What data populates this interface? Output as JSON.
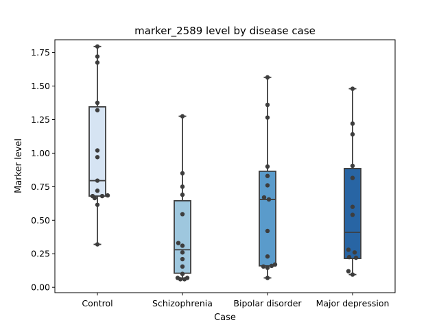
{
  "chart_data": {
    "type": "box",
    "title": "marker_2589 level by disease case",
    "xlabel": "Case",
    "ylabel": "Marker level",
    "ylim": [
      -0.04,
      1.845
    ],
    "yticks": [
      "0.00",
      "0.25",
      "0.50",
      "0.75",
      "1.00",
      "1.25",
      "1.50",
      "1.75"
    ],
    "ytick_values": [
      0,
      0.25,
      0.5,
      0.75,
      1.0,
      1.25,
      1.5,
      1.75
    ],
    "grid": false,
    "categories": [
      "Control",
      "Schizophrenia",
      "Bipolar disorder",
      "Major depression"
    ],
    "box_colors": [
      "#d6e4f3",
      "#9ec7de",
      "#5a9bcb",
      "#2865a4"
    ],
    "edge_color": "#3d3d3d",
    "point_color": "#3d3d3d",
    "boxes": [
      {
        "whisker_low": 0.32,
        "q1": 0.68,
        "median": 0.795,
        "q3": 1.345,
        "whisker_high": 1.795
      },
      {
        "whisker_low": 0.06,
        "q1": 0.105,
        "median": 0.28,
        "q3": 0.645,
        "whisker_high": 1.275
      },
      {
        "whisker_low": 0.07,
        "q1": 0.16,
        "median": 0.655,
        "q3": 0.865,
        "whisker_high": 1.565
      },
      {
        "whisker_low": 0.095,
        "q1": 0.215,
        "median": 0.41,
        "q3": 0.885,
        "whisker_high": 1.48
      }
    ],
    "points": [
      [
        {
          "dx": 0.0,
          "y": 1.795
        },
        {
          "dx": 0.0,
          "y": 1.72
        },
        {
          "dx": 0.0,
          "y": 1.675
        },
        {
          "dx": 0.0,
          "y": 1.375
        },
        {
          "dx": 0.0,
          "y": 1.32
        },
        {
          "dx": 0.0,
          "y": 1.02
        },
        {
          "dx": 0.0,
          "y": 0.97
        },
        {
          "dx": 0.0,
          "y": 0.795
        },
        {
          "dx": 0.0,
          "y": 0.72
        },
        {
          "dx": -0.07,
          "y": 0.68
        },
        {
          "dx": 0.07,
          "y": 0.68
        },
        {
          "dx": -0.04,
          "y": 0.665
        },
        {
          "dx": 0.15,
          "y": 0.685
        },
        {
          "dx": 0.0,
          "y": 0.615
        },
        {
          "dx": 0.0,
          "y": 0.32
        }
      ],
      [
        {
          "dx": 0.0,
          "y": 1.275
        },
        {
          "dx": 0.0,
          "y": 0.85
        },
        {
          "dx": 0.0,
          "y": 0.75
        },
        {
          "dx": 0.0,
          "y": 0.69
        },
        {
          "dx": 0.0,
          "y": 0.545
        },
        {
          "dx": -0.06,
          "y": 0.33
        },
        {
          "dx": 0.0,
          "y": 0.31
        },
        {
          "dx": 0.0,
          "y": 0.26
        },
        {
          "dx": 0.0,
          "y": 0.21
        },
        {
          "dx": 0.0,
          "y": 0.155
        },
        {
          "dx": 0.0,
          "y": 0.1
        },
        {
          "dx": -0.07,
          "y": 0.07
        },
        {
          "dx": 0.07,
          "y": 0.07
        },
        {
          "dx": -0.03,
          "y": 0.06
        },
        {
          "dx": 0.03,
          "y": 0.06
        }
      ],
      [
        {
          "dx": 0.0,
          "y": 1.565
        },
        {
          "dx": 0.0,
          "y": 1.36
        },
        {
          "dx": 0.0,
          "y": 1.265
        },
        {
          "dx": 0.0,
          "y": 0.9
        },
        {
          "dx": 0.0,
          "y": 0.83
        },
        {
          "dx": 0.0,
          "y": 0.76
        },
        {
          "dx": -0.05,
          "y": 0.67
        },
        {
          "dx": 0.02,
          "y": 0.655
        },
        {
          "dx": 0.0,
          "y": 0.42
        },
        {
          "dx": 0.0,
          "y": 0.23
        },
        {
          "dx": -0.06,
          "y": 0.155
        },
        {
          "dx": 0.0,
          "y": 0.145
        },
        {
          "dx": 0.06,
          "y": 0.16
        },
        {
          "dx": 0.11,
          "y": 0.17
        },
        {
          "dx": 0.0,
          "y": 0.07
        }
      ],
      [
        {
          "dx": 0.0,
          "y": 1.48
        },
        {
          "dx": 0.0,
          "y": 1.22
        },
        {
          "dx": 0.0,
          "y": 1.14
        },
        {
          "dx": 0.0,
          "y": 0.905
        },
        {
          "dx": 0.0,
          "y": 0.815
        },
        {
          "dx": 0.0,
          "y": 0.6
        },
        {
          "dx": 0.0,
          "y": 0.54
        },
        {
          "dx": -0.06,
          "y": 0.28
        },
        {
          "dx": 0.03,
          "y": 0.26
        },
        {
          "dx": -0.05,
          "y": 0.225
        },
        {
          "dx": 0.05,
          "y": 0.22
        },
        {
          "dx": -0.06,
          "y": 0.12
        },
        {
          "dx": 0.0,
          "y": 0.095
        }
      ]
    ]
  }
}
